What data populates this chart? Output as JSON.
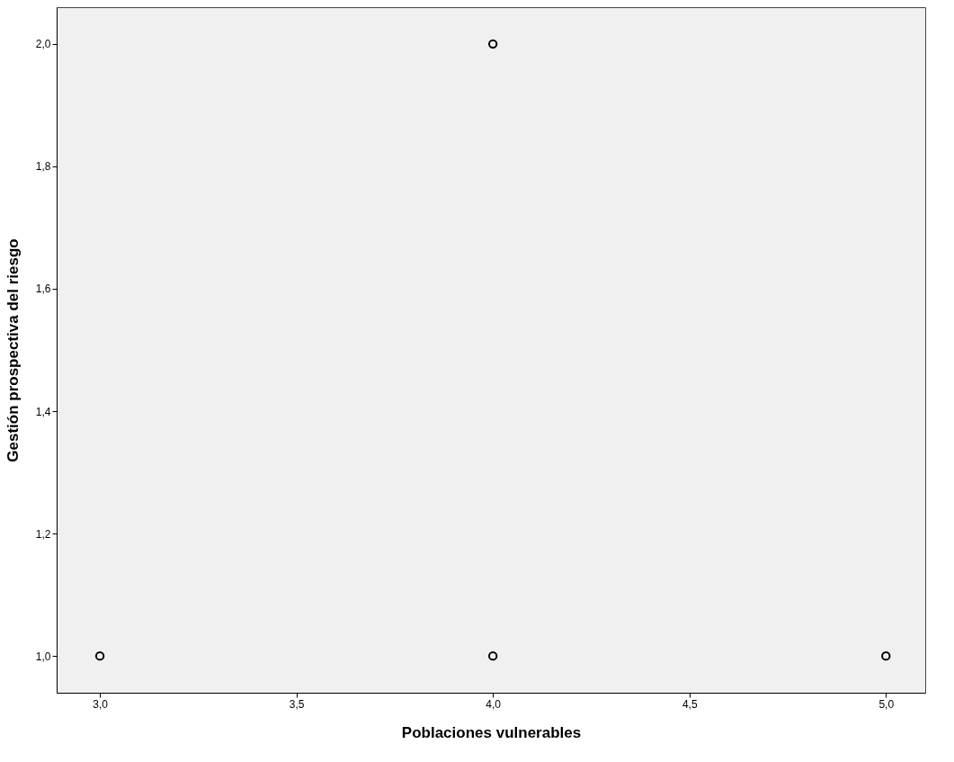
{
  "chart_data": {
    "type": "scatter",
    "xlabel": "Poblaciones vulnerables",
    "ylabel": "Gestión prospectiva del riesgo",
    "x": [
      3,
      4,
      4,
      5
    ],
    "series": [
      {
        "color": "#000000",
        "values": [
          1,
          2,
          1,
          1
        ]
      }
    ],
    "xlim": [
      2.89,
      5.1
    ],
    "ylim": [
      0.94,
      2.06
    ],
    "xticks": [
      {
        "value": 3,
        "label": "3,0"
      },
      {
        "value": 3.5,
        "label": "3,5"
      },
      {
        "value": 4,
        "label": "4,0"
      },
      {
        "value": 4.5,
        "label": "4,5"
      },
      {
        "value": 5,
        "label": "5,0"
      }
    ],
    "yticks": [
      {
        "value": 1,
        "label": "1,0"
      },
      {
        "value": 1.2,
        "label": "1,2"
      },
      {
        "value": 1.4,
        "label": "1,4"
      },
      {
        "value": 1.6,
        "label": "1,6"
      },
      {
        "value": 1.8,
        "label": "1,8"
      },
      {
        "value": 2,
        "label": "2,0"
      }
    ],
    "marker": "circle",
    "grid": false,
    "legend": false
  }
}
